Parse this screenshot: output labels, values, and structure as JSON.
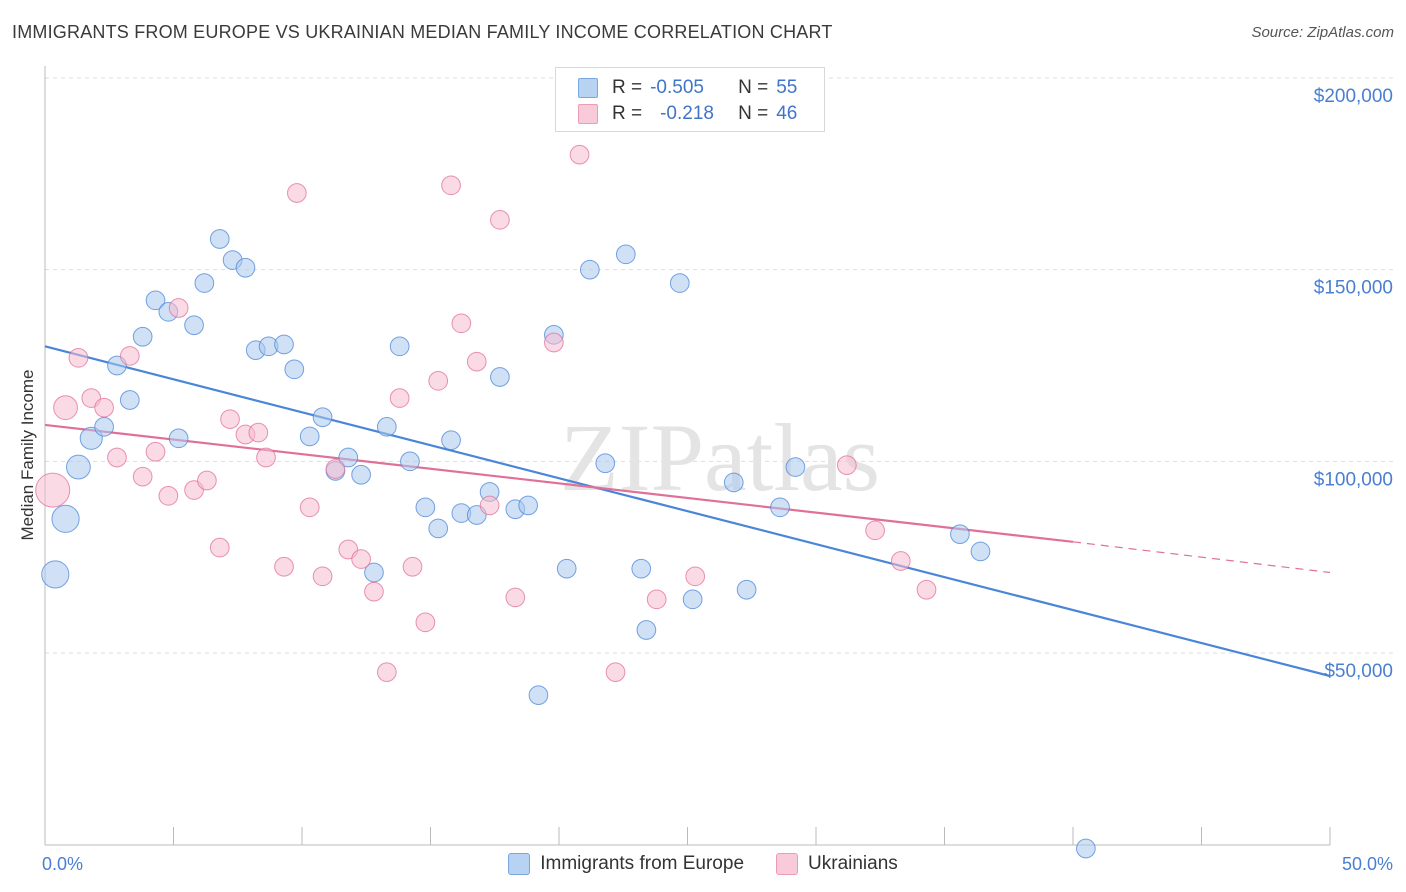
{
  "title": "IMMIGRANTS FROM EUROPE VS UKRAINIAN MEDIAN FAMILY INCOME CORRELATION CHART",
  "source": "Source: ZipAtlas.com",
  "watermark": "ZIPatlas",
  "legend": {
    "rows": [
      {
        "r_label": "R =",
        "r_value": "-0.505",
        "n_label": "N =",
        "n_value": "55",
        "color": "#a9c8ef"
      },
      {
        "r_label": "R =",
        "r_value": "-0.218",
        "n_label": "N =",
        "n_value": "46",
        "color": "#f6bcd0"
      }
    ]
  },
  "chart_data": {
    "type": "scatter",
    "xlabel": "",
    "ylabel": "Median Family Income",
    "xlim": [
      0,
      50
    ],
    "ylim": [
      0,
      200000
    ],
    "x_tick_labels": [
      "0.0%",
      "50.0%"
    ],
    "y_tick_labels": [
      "$50,000",
      "$100,000",
      "$150,000",
      "$200,000"
    ],
    "y_tick_values": [
      50000,
      100000,
      150000,
      200000
    ],
    "grid": true,
    "series": [
      {
        "name": "Immigrants from Europe",
        "color": "#4a86d8",
        "fill": "#a9c8ef",
        "trend": [
          [
            0,
            130000
          ],
          [
            50,
            44000
          ]
        ],
        "points": [
          [
            0.4,
            70500,
            1.6
          ],
          [
            0.8,
            85000,
            1.6
          ],
          [
            1.3,
            98500,
            1.4
          ],
          [
            1.8,
            106000,
            1.3
          ],
          [
            2.3,
            109000,
            1.1
          ],
          [
            2.8,
            125000,
            1.1
          ],
          [
            3.3,
            116000,
            1.1
          ],
          [
            3.8,
            132500,
            1.1
          ],
          [
            4.3,
            142000,
            1.1
          ],
          [
            4.8,
            139000,
            1.1
          ],
          [
            5.2,
            106000,
            1.1
          ],
          [
            5.8,
            135500,
            1.1
          ],
          [
            6.2,
            146500,
            1.1
          ],
          [
            6.8,
            158000,
            1.1
          ],
          [
            7.3,
            152500,
            1.1
          ],
          [
            7.8,
            150500,
            1.1
          ],
          [
            8.2,
            129000,
            1.1
          ],
          [
            8.7,
            130000,
            1.1
          ],
          [
            9.3,
            130500,
            1.1
          ],
          [
            9.7,
            124000,
            1.1
          ],
          [
            10.3,
            106500,
            1.1
          ],
          [
            10.8,
            111500,
            1.1
          ],
          [
            11.3,
            97500,
            1.1
          ],
          [
            11.8,
            101000,
            1.1
          ],
          [
            12.3,
            96500,
            1.1
          ],
          [
            12.8,
            71000,
            1.1
          ],
          [
            13.3,
            109000,
            1.1
          ],
          [
            13.8,
            130000,
            1.1
          ],
          [
            14.2,
            100000,
            1.1
          ],
          [
            14.8,
            88000,
            1.1
          ],
          [
            15.3,
            82500,
            1.1
          ],
          [
            15.8,
            105500,
            1.1
          ],
          [
            16.2,
            86500,
            1.1
          ],
          [
            16.8,
            86000,
            1.1
          ],
          [
            17.3,
            92000,
            1.1
          ],
          [
            17.7,
            122000,
            1.1
          ],
          [
            18.3,
            87500,
            1.1
          ],
          [
            18.8,
            88500,
            1.1
          ],
          [
            19.2,
            39000,
            1.1
          ],
          [
            19.8,
            133000,
            1.1
          ],
          [
            20.3,
            72000,
            1.1
          ],
          [
            21.2,
            150000,
            1.1
          ],
          [
            21.8,
            99500,
            1.1
          ],
          [
            22.6,
            154000,
            1.1
          ],
          [
            23.2,
            72000,
            1.1
          ],
          [
            23.4,
            56000,
            1.1
          ],
          [
            24.7,
            146500,
            1.1
          ],
          [
            25.2,
            64000,
            1.1
          ],
          [
            26.8,
            94500,
            1.1
          ],
          [
            27.3,
            66500,
            1.1
          ],
          [
            28.6,
            88000,
            1.1
          ],
          [
            29.2,
            98500,
            1.1
          ],
          [
            35.6,
            81000,
            1.1
          ],
          [
            36.4,
            76500,
            1.1
          ],
          [
            40.5,
            -1000,
            1.1
          ]
        ]
      },
      {
        "name": "Ukrainians",
        "color": "#e0709a",
        "fill": "#f6bcd0",
        "trend": [
          [
            0,
            109500
          ],
          [
            40,
            79000
          ]
        ],
        "trend_dashed_to": [
          50,
          71000
        ],
        "points": [
          [
            0.3,
            92500,
            2.0
          ],
          [
            0.8,
            114000,
            1.4
          ],
          [
            1.3,
            127000,
            1.1
          ],
          [
            1.8,
            116500,
            1.1
          ],
          [
            2.3,
            114000,
            1.1
          ],
          [
            2.8,
            101000,
            1.1
          ],
          [
            3.3,
            127500,
            1.1
          ],
          [
            3.8,
            96000,
            1.1
          ],
          [
            4.3,
            102500,
            1.1
          ],
          [
            4.8,
            91000,
            1.1
          ],
          [
            5.2,
            140000,
            1.1
          ],
          [
            5.8,
            92500,
            1.1
          ],
          [
            6.3,
            95000,
            1.1
          ],
          [
            6.8,
            77500,
            1.1
          ],
          [
            7.2,
            111000,
            1.1
          ],
          [
            7.8,
            107000,
            1.1
          ],
          [
            8.3,
            107500,
            1.1
          ],
          [
            8.6,
            101000,
            1.1
          ],
          [
            9.3,
            72500,
            1.1
          ],
          [
            9.8,
            170000,
            1.1
          ],
          [
            10.3,
            88000,
            1.1
          ],
          [
            10.8,
            70000,
            1.1
          ],
          [
            11.3,
            98000,
            1.1
          ],
          [
            11.8,
            77000,
            1.1
          ],
          [
            12.3,
            74500,
            1.1
          ],
          [
            12.8,
            66000,
            1.1
          ],
          [
            13.3,
            45000,
            1.1
          ],
          [
            13.8,
            116500,
            1.1
          ],
          [
            14.3,
            72500,
            1.1
          ],
          [
            14.8,
            58000,
            1.1
          ],
          [
            15.3,
            121000,
            1.1
          ],
          [
            15.8,
            172000,
            1.1
          ],
          [
            16.2,
            136000,
            1.1
          ],
          [
            16.8,
            126000,
            1.1
          ],
          [
            17.3,
            88500,
            1.1
          ],
          [
            17.7,
            163000,
            1.1
          ],
          [
            18.3,
            64500,
            1.1
          ],
          [
            19.8,
            131000,
            1.1
          ],
          [
            20.8,
            180000,
            1.1
          ],
          [
            22.2,
            45000,
            1.1
          ],
          [
            23.8,
            64000,
            1.1
          ],
          [
            25.3,
            70000,
            1.1
          ],
          [
            31.2,
            99000,
            1.1
          ],
          [
            32.3,
            82000,
            1.1
          ],
          [
            33.3,
            74000,
            1.1
          ],
          [
            34.3,
            66500,
            1.1
          ]
        ]
      }
    ]
  }
}
